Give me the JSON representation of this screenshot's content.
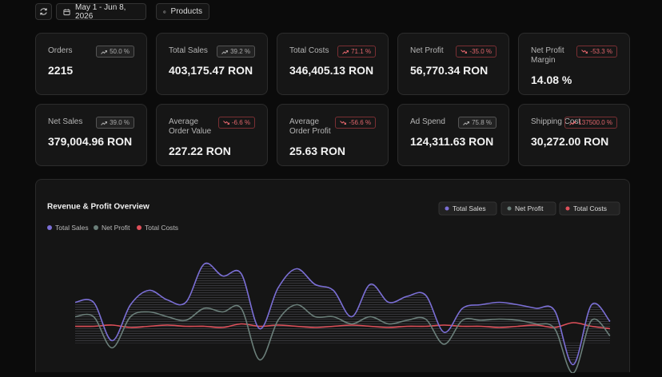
{
  "toolbar": {
    "date_range": "May 1 - Jun 8, 2026",
    "products": "Products"
  },
  "cards": [
    {
      "label": "Orders",
      "value": "2215",
      "badge": "50.0 %",
      "trend": "up",
      "tone": "neutral"
    },
    {
      "label": "Total Sales",
      "value": "403,175.47 RON",
      "badge": "39.2 %",
      "trend": "up",
      "tone": "neutral"
    },
    {
      "label": "Total Costs",
      "value": "346,405.13 RON",
      "badge": "71.1 %",
      "trend": "up",
      "tone": "negative"
    },
    {
      "label": "Net Profit",
      "value": "56,770.34 RON",
      "badge": "-35.0 %",
      "trend": "down",
      "tone": "negative"
    },
    {
      "label": "Net Profit Margin",
      "value": "14.08 %",
      "badge": "-53.3 %",
      "trend": "down",
      "tone": "negative"
    },
    {
      "label": "Net Sales",
      "value": "379,004.96 RON",
      "badge": "39.0 %",
      "trend": "up",
      "tone": "neutral"
    },
    {
      "label": "Average Order Value",
      "value": "227.22 RON",
      "badge": "-6.6 %",
      "trend": "down",
      "tone": "negative"
    },
    {
      "label": "Average Order Profit",
      "value": "25.63 RON",
      "badge": "-56.6 %",
      "trend": "down",
      "tone": "negative"
    },
    {
      "label": "Ad Spend",
      "value": "124,311.63 RON",
      "badge": "75.8 %",
      "trend": "up",
      "tone": "neutral"
    },
    {
      "label": "Shipping Cost",
      "value": "30,272.00 RON",
      "badge": "137500.0 %",
      "trend": "up",
      "tone": "negative"
    }
  ],
  "chart_data": {
    "type": "line",
    "title": "Revenue & Profit Overview",
    "ylim": [
      0,
      100
    ],
    "series": [
      {
        "name": "Total Sales",
        "color": "#7b6fd6",
        "values": [
          59,
          59,
          27,
          57,
          69,
          61,
          59,
          91,
          81,
          83,
          37,
          71,
          87,
          74,
          69,
          47,
          74,
          59,
          64,
          65,
          34,
          54,
          57,
          59,
          57,
          54,
          52,
          7,
          57,
          43
        ]
      },
      {
        "name": "Net Profit",
        "color": "#6b7f7a",
        "values": [
          47,
          47,
          21,
          47,
          51,
          47,
          44,
          54,
          51,
          54,
          11,
          44,
          57,
          47,
          47,
          41,
          47,
          41,
          44,
          45,
          24,
          44,
          44,
          45,
          44,
          41,
          37,
          0,
          44,
          31
        ]
      },
      {
        "name": "Total Costs",
        "color": "#e0505a",
        "values": [
          39,
          39,
          40,
          38,
          39,
          40,
          39,
          39,
          38,
          41,
          39,
          40,
          39,
          38,
          39,
          40,
          39,
          38,
          39,
          39,
          40,
          39,
          39,
          38,
          39,
          40,
          38,
          42,
          39,
          37
        ]
      }
    ]
  }
}
